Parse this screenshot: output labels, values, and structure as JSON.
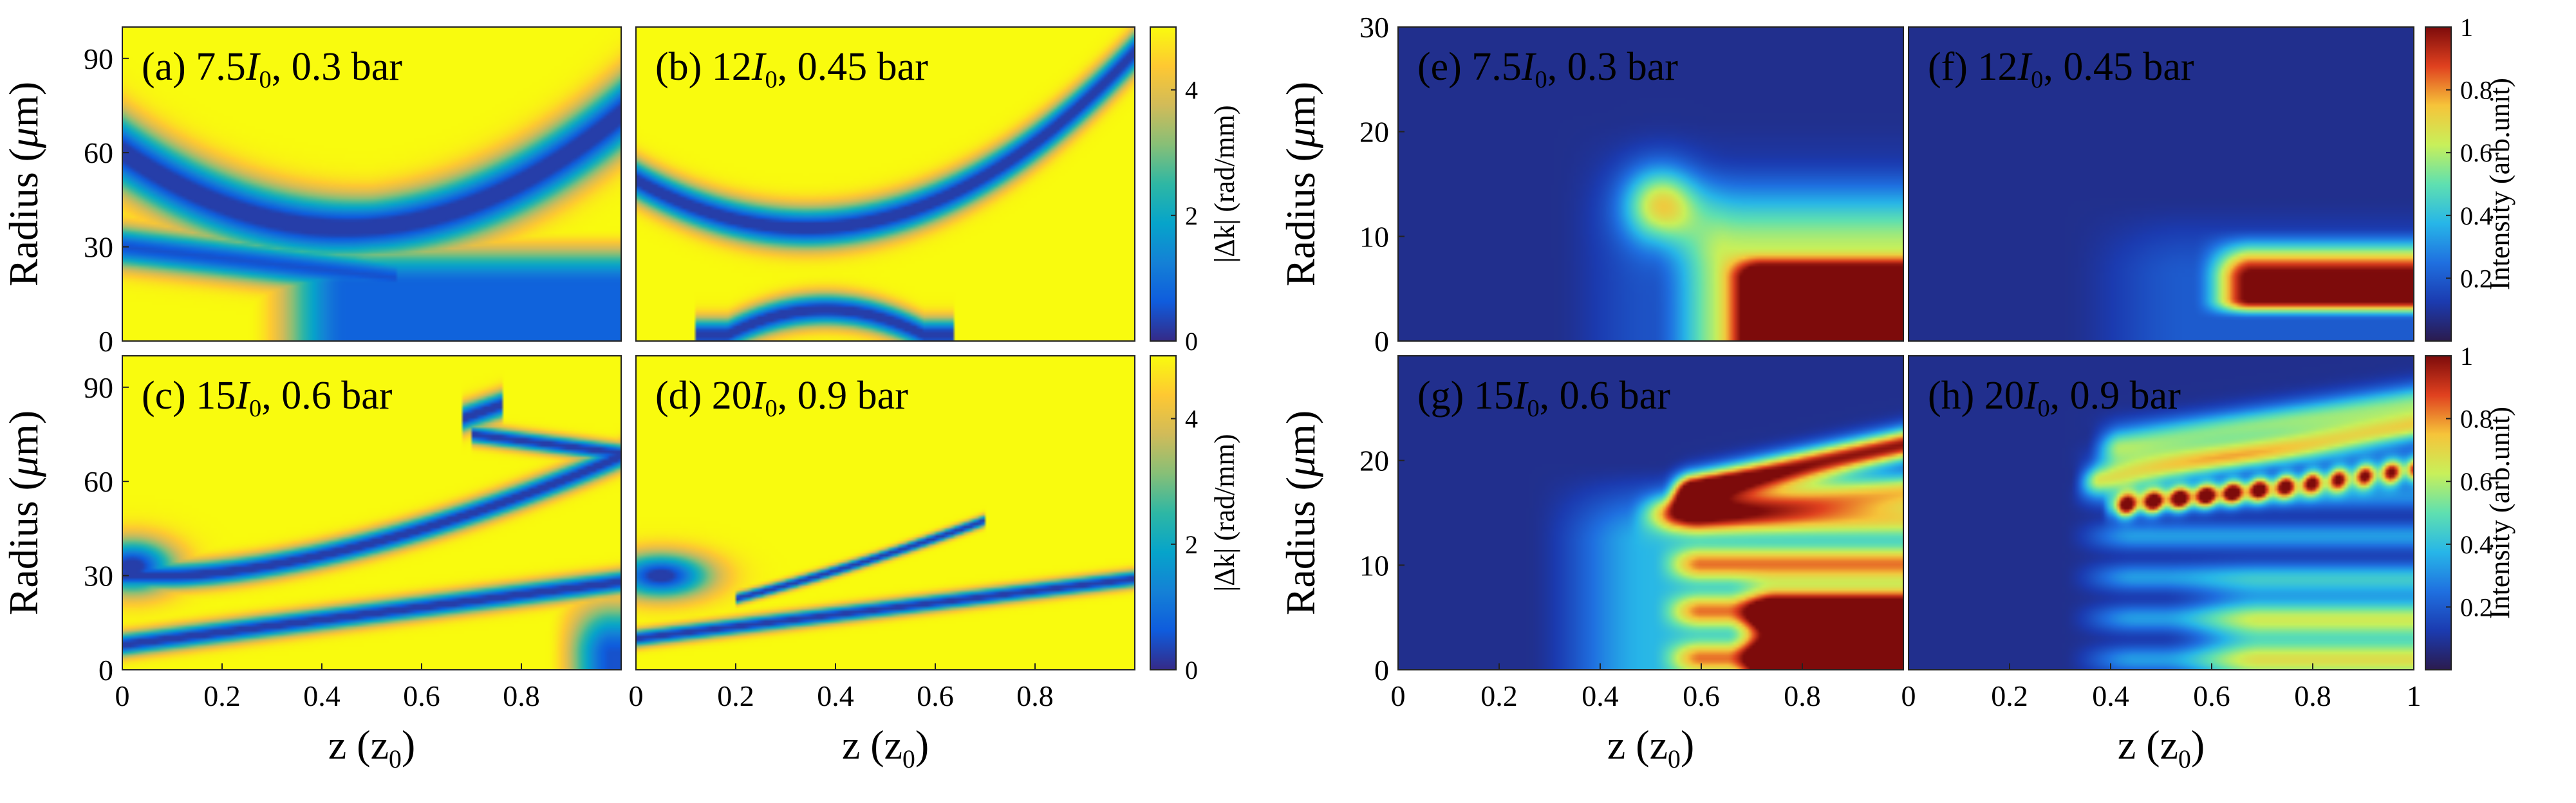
{
  "chart_data": [
    {
      "type": "heatmap",
      "id": "a",
      "label_prefix": "(a) 7.5",
      "label_suffix": ", 0.3 bar",
      "quantity": "|Δk| (rad/mm)",
      "x_range": [
        0,
        1
      ],
      "y_range": [
        0,
        100
      ],
      "pattern": "phase_a"
    },
    {
      "type": "heatmap",
      "id": "b",
      "label_prefix": "(b) 12",
      "label_suffix": ", 0.45 bar",
      "quantity": "|Δk| (rad/mm)",
      "x_range": [
        0,
        1
      ],
      "y_range": [
        0,
        100
      ],
      "pattern": "phase_b"
    },
    {
      "type": "heatmap",
      "id": "c",
      "label_prefix": "(c) 15",
      "label_suffix": ", 0.6 bar",
      "quantity": "|Δk| (rad/mm)",
      "x_range": [
        0,
        1
      ],
      "y_range": [
        0,
        100
      ],
      "pattern": "phase_c"
    },
    {
      "type": "heatmap",
      "id": "d",
      "label_prefix": "(d) 20",
      "label_suffix": ", 0.9 bar",
      "quantity": "|Δk| (rad/mm)",
      "x_range": [
        0,
        1
      ],
      "y_range": [
        0,
        100
      ],
      "pattern": "phase_d"
    },
    {
      "type": "heatmap",
      "id": "e",
      "label_prefix": "(e) 7.5",
      "label_suffix": ", 0.3 bar",
      "quantity": "Intensity (arb.unit)",
      "x_range": [
        0,
        1
      ],
      "y_range": [
        0,
        30
      ],
      "pattern": "int_e"
    },
    {
      "type": "heatmap",
      "id": "f",
      "label_prefix": "(f) 12",
      "label_suffix": ", 0.45 bar",
      "quantity": "Intensity (arb.unit)",
      "x_range": [
        0,
        1
      ],
      "y_range": [
        0,
        30
      ],
      "pattern": "int_f"
    },
    {
      "type": "heatmap",
      "id": "g",
      "label_prefix": "(g) 15",
      "label_suffix": ", 0.6 bar",
      "quantity": "Intensity (arb.unit)",
      "x_range": [
        0,
        1
      ],
      "y_range": [
        0,
        30
      ],
      "pattern": "int_g"
    },
    {
      "type": "heatmap",
      "id": "h",
      "label_prefix": "(h) 20",
      "label_suffix": ", 0.9 bar",
      "quantity": "Intensity (arb.unit)",
      "x_range": [
        0,
        1
      ],
      "y_range": [
        0,
        30
      ],
      "pattern": "int_h"
    }
  ],
  "labels": {
    "intensity_symbol": "I",
    "intensity_subscript": "0",
    "radius_text": "Radius (",
    "radius_mu": "μ",
    "radius_unit": "m)",
    "z_text": "z (z",
    "z_subscript": "0",
    "z_close": ")",
    "dk_colorbar_label": "|Δk| (rad/mm)",
    "int_colorbar_label": "Intensity (arb.unit)"
  },
  "ticks": {
    "left_x": [
      "0",
      "0.2",
      "0.4",
      "0.6",
      "0.8"
    ],
    "left_x_values": [
      0,
      0.2,
      0.4,
      0.6,
      0.8
    ],
    "right_x_e": [
      "0",
      "0.2",
      "0.4",
      "0.6",
      "0.8"
    ],
    "right_x_e_values": [
      0,
      0.2,
      0.4,
      0.6,
      0.8
    ],
    "right_x_f": [
      "0",
      "0.2",
      "0.4",
      "0.6",
      "0.8",
      "1"
    ],
    "right_x_f_values": [
      0,
      0.2,
      0.4,
      0.6,
      0.8,
      1
    ],
    "left_y": [
      "0",
      "30",
      "60",
      "90"
    ],
    "left_y_values": [
      0,
      30,
      60,
      90
    ],
    "right_y_top": [
      "0",
      "10",
      "20",
      "30"
    ],
    "right_y_top_values": [
      0,
      10,
      20,
      30
    ],
    "right_y_bottom": [
      "0",
      "10",
      "20"
    ],
    "right_y_bottom_values": [
      0,
      10,
      20
    ],
    "dk_colorbar": [
      "0",
      "2",
      "4"
    ],
    "dk_colorbar_values": [
      0,
      2,
      4
    ],
    "int_colorbar": [
      "0.2",
      "0.4",
      "0.6",
      "0.8",
      "1"
    ],
    "int_colorbar_values": [
      0.2,
      0.4,
      0.6,
      0.8,
      1.0
    ]
  },
  "colormaps": {
    "parula": [
      "#352a87",
      "#0f5cdd",
      "#1481d6",
      "#06a4ca",
      "#2eb7a4",
      "#87bf77",
      "#d1bb59",
      "#fec832",
      "#f9fb0e"
    ],
    "jet": [
      "#2b1b4e",
      "#1b3bb0",
      "#1f70e0",
      "#27b6e8",
      "#5fe0b0",
      "#c8f05a",
      "#f6c43a",
      "#e0411f",
      "#7d0b0b"
    ]
  },
  "colorbar_ranges": {
    "dk": [
      0,
      5
    ],
    "intensity": [
      0,
      1
    ]
  }
}
